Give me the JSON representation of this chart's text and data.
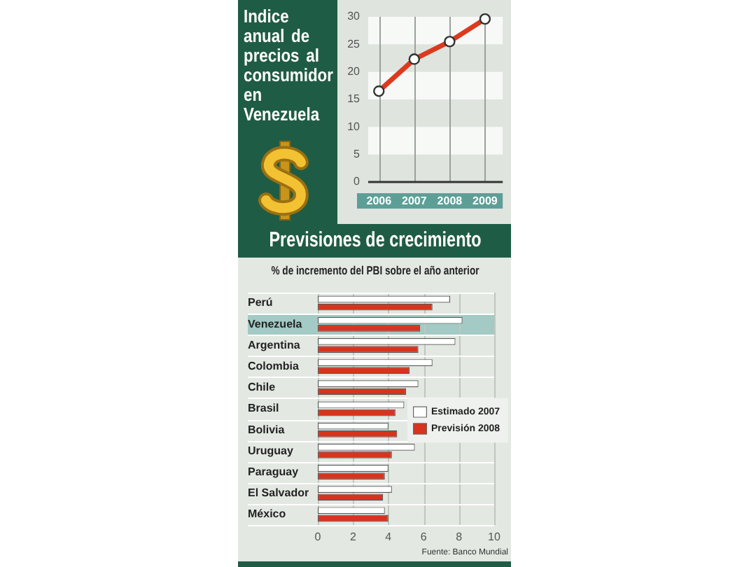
{
  "chart_data": [
    {
      "type": "line",
      "title": "Indice anual de precios al consumidor en Venezuela",
      "categories": [
        "2006",
        "2007",
        "2008",
        "2009"
      ],
      "values": [
        16.5,
        22.3,
        25.5,
        29.6
      ],
      "color": "#dc3a1e",
      "ylim": [
        0,
        30
      ],
      "yticks": [
        0,
        5,
        10,
        15,
        20,
        25,
        30
      ],
      "grid": true,
      "marker": "circle"
    },
    {
      "type": "bar",
      "orientation": "horizontal",
      "title": "Previsiones de crecimiento",
      "subtitle": "% de incremento del PBI sobre el año anterior",
      "categories": [
        "Perú",
        "Venezuela",
        "Argentina",
        "Colombia",
        "Chile",
        "Brasil",
        "Bolivia",
        "Uruguay",
        "Paraguay",
        "El Salvador",
        "México"
      ],
      "series": [
        {
          "name": "Estimado 2007",
          "color": "#ffffff",
          "values": [
            7.5,
            8.2,
            7.8,
            6.5,
            5.7,
            4.9,
            4.0,
            5.5,
            4.0,
            4.2,
            3.8
          ]
        },
        {
          "name": "Previsión 2008",
          "color": "#d8331e",
          "values": [
            6.5,
            5.8,
            5.7,
            5.2,
            5.0,
            4.4,
            4.5,
            4.2,
            3.8,
            3.7,
            4.0
          ]
        }
      ],
      "xlim": [
        0,
        10
      ],
      "xticks": [
        0,
        2,
        4,
        6,
        8,
        10
      ],
      "grid": true,
      "legend": "right",
      "bands": [
        {
          "axis": "y",
          "from": "Venezuela",
          "to": "Venezuela",
          "color": "#a3cac4"
        }
      ],
      "annotations": [
        "Fuente: Banco Mundial"
      ]
    }
  ]
}
